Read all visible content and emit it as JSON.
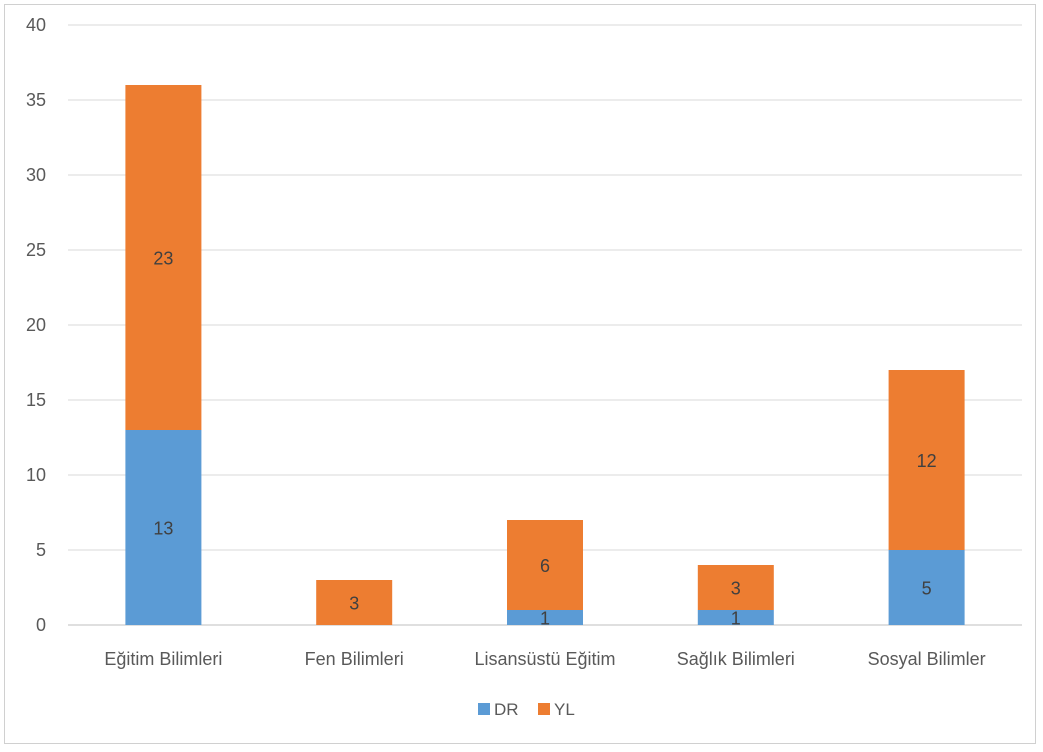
{
  "chart_data": {
    "type": "bar",
    "stacked": true,
    "categories": [
      "Eğitim Bilimleri",
      "Fen Bilimleri",
      "Lisansüstü Eğitim",
      "Sağlık Bilimleri",
      "Sosyal Bilimler"
    ],
    "series": [
      {
        "name": "DR",
        "values": [
          13,
          0,
          1,
          1,
          5
        ],
        "color": "#5b9bd5"
      },
      {
        "name": "YL",
        "values": [
          23,
          3,
          6,
          3,
          12
        ],
        "color": "#ed7d31"
      }
    ],
    "y_ticks": [
      0,
      5,
      10,
      15,
      20,
      25,
      30,
      35,
      40
    ],
    "ylim": [
      0,
      40
    ],
    "grid": true,
    "legend_position": "bottom"
  }
}
